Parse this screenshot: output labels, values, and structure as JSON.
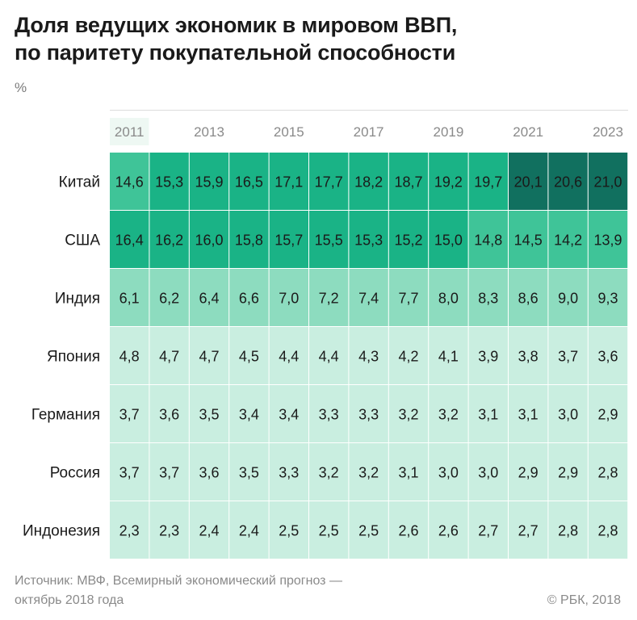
{
  "chart_data": {
    "type": "heatmap",
    "title_line1": "Доля ведущих экономик в мировом ВВП,",
    "title_line2": "по паритету покупательной способности",
    "unit": "%",
    "x_tick_labels": [
      "2011",
      "",
      "2013",
      "",
      "2015",
      "",
      "2017",
      "",
      "2019",
      "",
      "2021",
      "",
      "2023"
    ],
    "x": [
      2011,
      2012,
      2013,
      2014,
      2015,
      2016,
      2017,
      2018,
      2019,
      2020,
      2021,
      2022,
      2023
    ],
    "rows": [
      {
        "name": "Китай",
        "values": [
          "14,6",
          "15,3",
          "15,9",
          "16,5",
          "17,1",
          "17,7",
          "18,2",
          "18,7",
          "19,2",
          "19,7",
          "20,1",
          "20,6",
          "21,0"
        ]
      },
      {
        "name": "США",
        "values": [
          "16,4",
          "16,2",
          "16,0",
          "15,8",
          "15,7",
          "15,5",
          "15,3",
          "15,2",
          "15,0",
          "14,8",
          "14,5",
          "14,2",
          "13,9"
        ]
      },
      {
        "name": "Индия",
        "values": [
          "6,1",
          "6,2",
          "6,4",
          "6,6",
          "7,0",
          "7,2",
          "7,4",
          "7,7",
          "8,0",
          "8,3",
          "8,6",
          "9,0",
          "9,3"
        ]
      },
      {
        "name": "Япония",
        "values": [
          "4,8",
          "4,7",
          "4,7",
          "4,5",
          "4,4",
          "4,4",
          "4,3",
          "4,2",
          "4,1",
          "3,9",
          "3,8",
          "3,7",
          "3,6"
        ]
      },
      {
        "name": "Германия",
        "values": [
          "3,7",
          "3,6",
          "3,5",
          "3,4",
          "3,4",
          "3,3",
          "3,3",
          "3,2",
          "3,2",
          "3,1",
          "3,1",
          "3,0",
          "2,9"
        ]
      },
      {
        "name": "Россия",
        "values": [
          "3,7",
          "3,7",
          "3,6",
          "3,5",
          "3,3",
          "3,2",
          "3,2",
          "3,1",
          "3,0",
          "3,0",
          "2,9",
          "2,9",
          "2,8"
        ]
      },
      {
        "name": "Индонезия",
        "values": [
          "2,3",
          "2,3",
          "2,4",
          "2,4",
          "2,5",
          "2,5",
          "2,5",
          "2,6",
          "2,6",
          "2,7",
          "2,7",
          "2,8",
          "2,8"
        ]
      }
    ],
    "color_scale": [
      {
        "min": 20,
        "color": "#11705f"
      },
      {
        "min": 15,
        "color": "#1ab386"
      },
      {
        "min": 10,
        "color": "#3fc498"
      },
      {
        "min": 6,
        "color": "#8ddcbf"
      },
      {
        "min": 0,
        "color": "#c9eee0"
      }
    ],
    "label_color": "#1a1a1a",
    "tick_color": "#8a8a8a"
  },
  "footer": {
    "source_line1": "Источник: МВФ, Всемирный экономический прогноз —",
    "source_line2": "октябрь 2018 года",
    "copyright": "© РБК, 2018"
  }
}
